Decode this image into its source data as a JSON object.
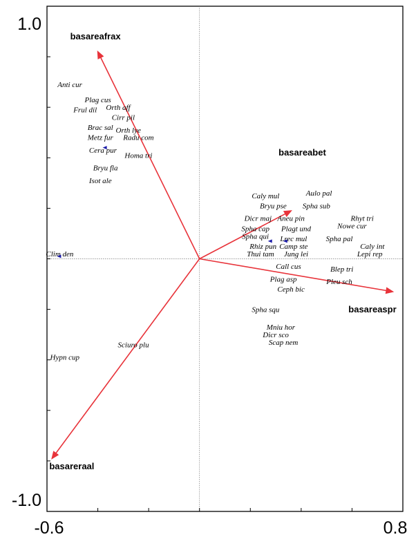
{
  "chart_data": {
    "type": "scatter",
    "plot_kind": "ordination biplot",
    "xlim": [
      -0.6,
      0.8
    ],
    "ylim": [
      -1.0,
      1.0
    ],
    "x_tick_labels": [
      "-0.6",
      "0.8"
    ],
    "y_tick_labels": [
      "1.0",
      "-1.0"
    ],
    "reference_lines": {
      "x": 0,
      "y": 0,
      "style": "dotted"
    },
    "arrow_color": "#e8333a",
    "marker_color": "#1a1aa8",
    "environmental_vectors": [
      {
        "label": "basareafrax",
        "x": -0.4,
        "y": 0.82
      },
      {
        "label": "basareabet",
        "x": 0.36,
        "y": 0.19
      },
      {
        "label": "basareaspr",
        "x": 0.76,
        "y": -0.13
      },
      {
        "label": "basareraal",
        "x": -0.58,
        "y": -0.79
      }
    ],
    "species": [
      {
        "label": "Anti cur",
        "x": -0.51,
        "y": 0.68
      },
      {
        "label": "Plag cus",
        "x": -0.4,
        "y": 0.62
      },
      {
        "label": "Frul dil",
        "x": -0.45,
        "y": 0.58
      },
      {
        "label": "Orth aff",
        "x": -0.32,
        "y": 0.59
      },
      {
        "label": "Cirr pil",
        "x": -0.3,
        "y": 0.55
      },
      {
        "label": "Brac sal",
        "x": -0.39,
        "y": 0.51
      },
      {
        "label": "Orth lye",
        "x": -0.28,
        "y": 0.5
      },
      {
        "label": "Metz fur",
        "x": -0.39,
        "y": 0.47
      },
      {
        "label": "Radu com",
        "x": -0.24,
        "y": 0.47
      },
      {
        "label": "Cera pur",
        "x": -0.38,
        "y": 0.42
      },
      {
        "label": "Homa tri",
        "x": -0.24,
        "y": 0.4
      },
      {
        "label": "Bryu fla",
        "x": -0.37,
        "y": 0.35
      },
      {
        "label": "Isot ale",
        "x": -0.39,
        "y": 0.3
      },
      {
        "label": "Clim den",
        "x": -0.55,
        "y": 0.01
      },
      {
        "label": "Sciuro plu",
        "x": -0.26,
        "y": -0.35
      },
      {
        "label": "Hypn cup",
        "x": -0.53,
        "y": -0.4
      },
      {
        "label": "Aulo pal",
        "x": 0.47,
        "y": 0.25
      },
      {
        "label": "Caly mul",
        "x": 0.26,
        "y": 0.24
      },
      {
        "label": "Bryu pse",
        "x": 0.29,
        "y": 0.2
      },
      {
        "label": "Spha sub",
        "x": 0.46,
        "y": 0.2
      },
      {
        "label": "Rhyt tri",
        "x": 0.64,
        "y": 0.15
      },
      {
        "label": "Dicr maj",
        "x": 0.23,
        "y": 0.15
      },
      {
        "label": "Aneu pin",
        "x": 0.36,
        "y": 0.15
      },
      {
        "label": "Nowe cur",
        "x": 0.6,
        "y": 0.12
      },
      {
        "label": "Spha cap",
        "x": 0.22,
        "y": 0.11
      },
      {
        "label": "Plagt und",
        "x": 0.38,
        "y": 0.11
      },
      {
        "label": "Spha qui",
        "x": 0.22,
        "y": 0.08
      },
      {
        "label": "Lrec mul",
        "x": 0.37,
        "y": 0.07
      },
      {
        "label": "Spha pal",
        "x": 0.55,
        "y": 0.07
      },
      {
        "label": "Rhiz pun",
        "x": 0.25,
        "y": 0.04
      },
      {
        "label": "Camp ste",
        "x": 0.37,
        "y": 0.04
      },
      {
        "label": "Caly int",
        "x": 0.68,
        "y": 0.04
      },
      {
        "label": "Thui tam",
        "x": 0.24,
        "y": 0.01
      },
      {
        "label": "Jung lei",
        "x": 0.38,
        "y": 0.01
      },
      {
        "label": "Lepi rep",
        "x": 0.67,
        "y": 0.01
      },
      {
        "label": "Call cus",
        "x": 0.35,
        "y": -0.04
      },
      {
        "label": "Blep tri",
        "x": 0.56,
        "y": -0.05
      },
      {
        "label": "Plag asp",
        "x": 0.33,
        "y": -0.09
      },
      {
        "label": "Pleu sch",
        "x": 0.55,
        "y": -0.1
      },
      {
        "label": "Ceph bic",
        "x": 0.36,
        "y": -0.13
      },
      {
        "label": "Spha squ",
        "x": 0.26,
        "y": -0.21
      },
      {
        "label": "Mniu hor",
        "x": 0.32,
        "y": -0.28
      },
      {
        "label": "Dicr sco",
        "x": 0.3,
        "y": -0.31
      },
      {
        "label": "Scap nem",
        "x": 0.33,
        "y": -0.34
      }
    ],
    "markers": [
      {
        "x": -0.37,
        "y": 0.44
      },
      {
        "x": -0.55,
        "y": 0.01
      },
      {
        "x": 0.28,
        "y": 0.07
      },
      {
        "x": 0.34,
        "y": 0.07
      }
    ]
  }
}
